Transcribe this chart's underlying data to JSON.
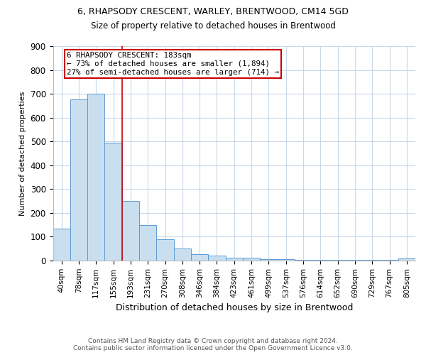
{
  "title1": "6, RHAPSODY CRESCENT, WARLEY, BRENTWOOD, CM14 5GD",
  "title2": "Size of property relative to detached houses in Brentwood",
  "xlabel": "Distribution of detached houses by size in Brentwood",
  "ylabel": "Number of detached properties",
  "bar_labels": [
    "40sqm",
    "78sqm",
    "117sqm",
    "155sqm",
    "193sqm",
    "231sqm",
    "270sqm",
    "308sqm",
    "346sqm",
    "384sqm",
    "423sqm",
    "461sqm",
    "499sqm",
    "537sqm",
    "576sqm",
    "614sqm",
    "652sqm",
    "690sqm",
    "729sqm",
    "767sqm",
    "805sqm"
  ],
  "bar_values": [
    135,
    675,
    700,
    495,
    250,
    150,
    90,
    50,
    25,
    20,
    10,
    10,
    5,
    5,
    3,
    3,
    2,
    2,
    1,
    1,
    8
  ],
  "bar_color": "#c9dff0",
  "bar_edge_color": "#5b9bd5",
  "vline_color": "#cc0000",
  "vline_x": 3.5,
  "annotation_line1": "6 RHAPSODY CRESCENT: 183sqm",
  "annotation_line2": "← 73% of detached houses are smaller (1,894)",
  "annotation_line3": "27% of semi-detached houses are larger (714) →",
  "annotation_box_color": "#ffffff",
  "annotation_box_edge": "#cc0000",
  "ylim": [
    0,
    900
  ],
  "yticks": [
    0,
    100,
    200,
    300,
    400,
    500,
    600,
    700,
    800,
    900
  ],
  "footnote1": "Contains HM Land Registry data © Crown copyright and database right 2024.",
  "footnote2": "Contains public sector information licensed under the Open Government Licence v3.0.",
  "bg_color": "#ffffff",
  "grid_color": "#c8d8e8",
  "title1_fontsize": 9,
  "title2_fontsize": 8.5,
  "ylabel_color": "#000000",
  "ylabel_fontsize": 8,
  "xlabel_fontsize": 9
}
